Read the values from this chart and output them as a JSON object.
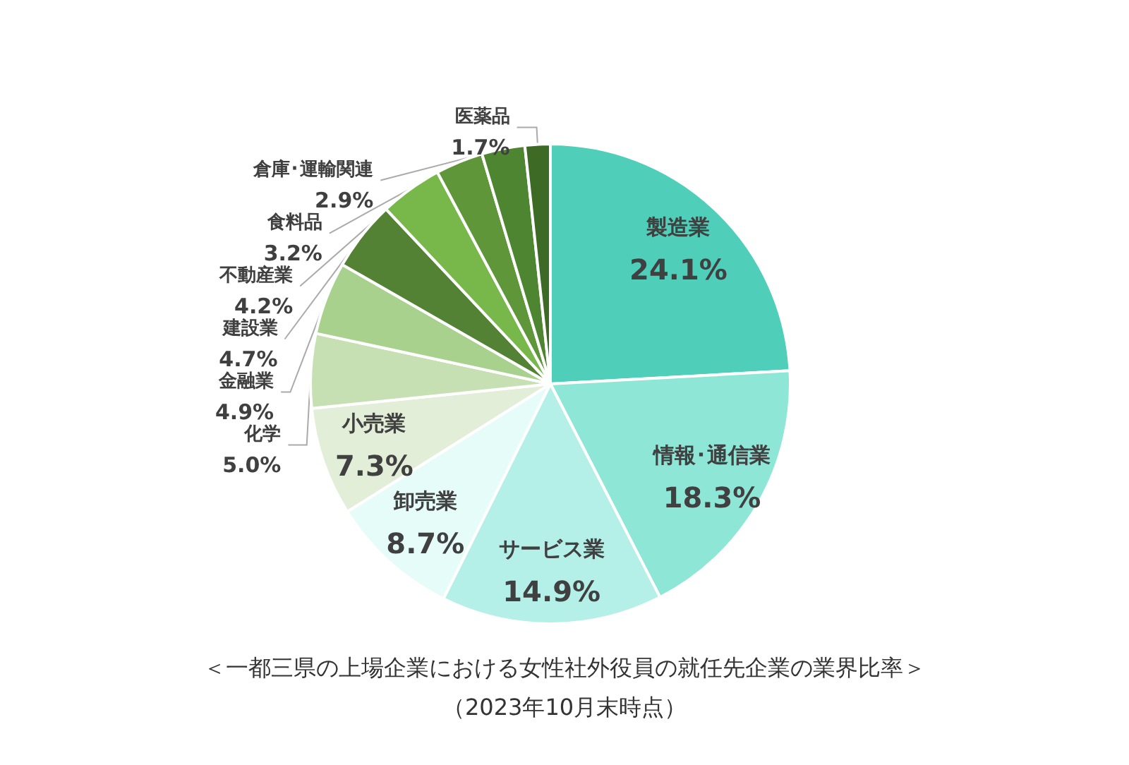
{
  "chart_data": {
    "type": "pie",
    "title": "＜一都三県の上場企業における女性社外役員の就任先企業の業界比率＞",
    "subtitle": "（2023年10月末時点）",
    "categories": [
      "製造業",
      "情報･通信業",
      "サービス業",
      "卸売業",
      "小売業",
      "化学",
      "金融業",
      "建設業",
      "不動産業",
      "食料品",
      "倉庫･運輸関連",
      "医薬品"
    ],
    "values": [
      24.1,
      18.3,
      14.9,
      8.7,
      7.3,
      5.0,
      4.9,
      4.7,
      4.2,
      3.2,
      2.9,
      1.7
    ],
    "value_labels": [
      "24.1%",
      "18.3%",
      "14.9%",
      "8.7%",
      "7.3%",
      "5.0%",
      "4.9%",
      "4.7%",
      "4.2%",
      "3.2%",
      "2.9%",
      "1.7%"
    ],
    "colors": [
      "#4fcfb9",
      "#8ee6d7",
      "#b4f0e7",
      "#e5fcf9",
      "#e3eed8",
      "#c7e0b3",
      "#a9d18e",
      "#548235",
      "#78b84a",
      "#5e9639",
      "#4d8530",
      "#3d6a25"
    ],
    "legend": false
  }
}
